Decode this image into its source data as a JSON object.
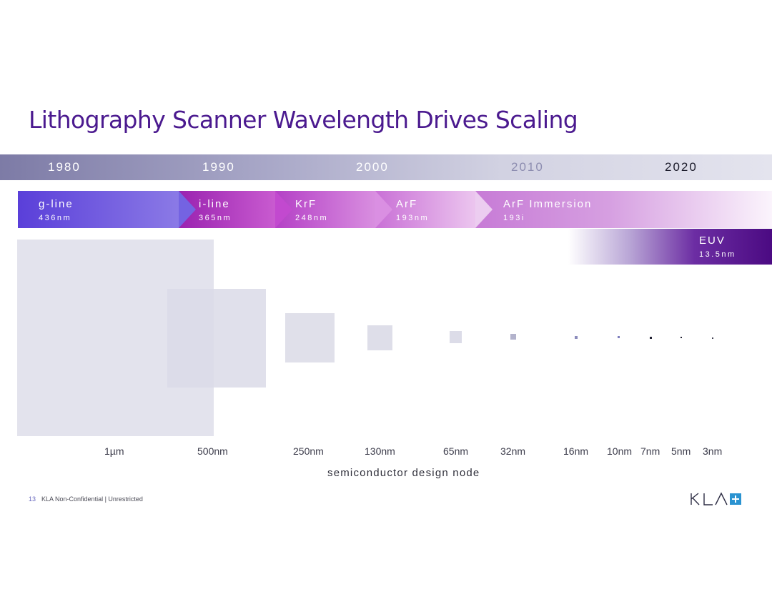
{
  "title": "Lithography Scanner Wavelength Drives Scaling",
  "years": [
    "1980",
    "1990",
    "2000",
    "2010",
    "2020"
  ],
  "bands": [
    {
      "name": "g-line",
      "wavelength": "436nm"
    },
    {
      "name": "i-line",
      "wavelength": "365nm"
    },
    {
      "name": "KrF",
      "wavelength": "248nm"
    },
    {
      "name": "ArF",
      "wavelength": "193nm"
    },
    {
      "name": "ArF Immersion",
      "wavelength": "193i"
    },
    {
      "name": "EUV",
      "wavelength": "13.5nm"
    }
  ],
  "nodes": [
    "1µm",
    "500nm",
    "250nm",
    "130nm",
    "65nm",
    "32nm",
    "16nm",
    "10nm",
    "7nm",
    "5nm",
    "3nm"
  ],
  "axis_title": "semiconductor design node",
  "footer": {
    "page": "13",
    "text": "KLA Non-Confidential | Unrestricted"
  },
  "logo": {
    "text": "KLA",
    "icon": "plus-icon"
  },
  "colors": {
    "title": "#4b1a8f",
    "g_line": "#5b3fd8",
    "i_line": "#a12cb4",
    "euv": "#4b0a82",
    "square_light": "#e2e2ec",
    "square_dark": "#a9a9c6"
  }
}
